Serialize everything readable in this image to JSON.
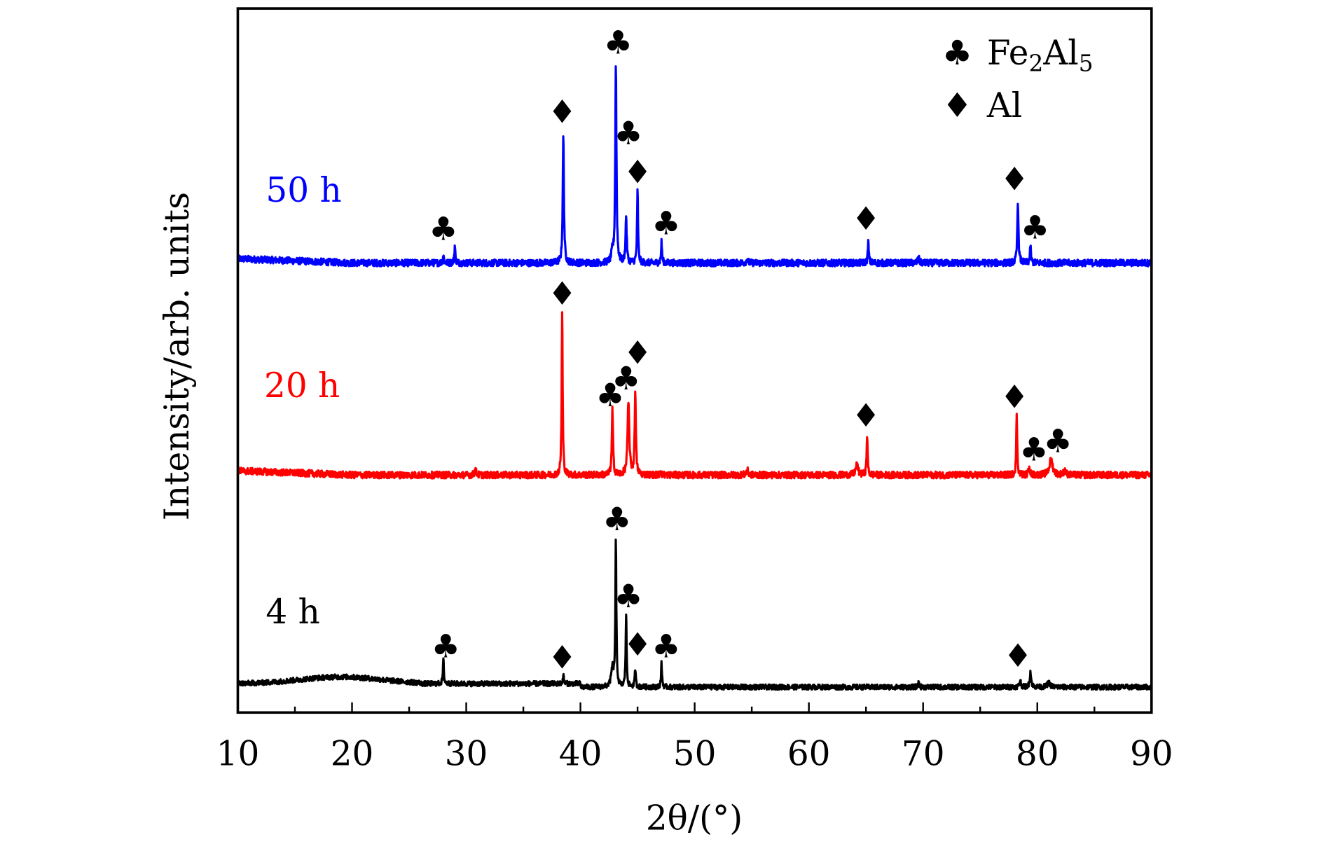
{
  "chart_data": {
    "type": "line",
    "title": "",
    "xlabel": "2θ/(°)",
    "ylabel": "Intensity/arb. units",
    "xlim": [
      10,
      90
    ],
    "ylim": [
      -30,
      800
    ],
    "xticks": [
      "10",
      "20",
      "30",
      "40",
      "50",
      "60",
      "70",
      "80",
      "90"
    ],
    "grid": false,
    "legend": {
      "placement": "top-right",
      "entries": [
        {
          "symbol": "♣",
          "label_main": "Fe",
          "sub1": "2",
          "mid": "Al",
          "sub2": "5",
          "name": "Fe2Al5"
        },
        {
          "symbol": "♦",
          "label_main": "Al",
          "name": "Al"
        }
      ]
    },
    "series": [
      {
        "name": "50 h",
        "label": "50 h",
        "color": "#0000ff",
        "offset": 500,
        "noise": 4,
        "peaks": [
          [
            28.0,
            10,
            0.1
          ],
          [
            29.0,
            20,
            0.1
          ],
          [
            38.5,
            150,
            0.12
          ],
          [
            43.1,
            235,
            0.12
          ],
          [
            44.0,
            55,
            0.12
          ],
          [
            45.0,
            85,
            0.1
          ],
          [
            47.1,
            25,
            0.1
          ],
          [
            65.2,
            25,
            0.1
          ],
          [
            78.3,
            72,
            0.12
          ],
          [
            79.4,
            20,
            0.1
          ],
          [
            69.6,
            6,
            0.15
          ],
          [
            54.6,
            5,
            0.15
          ],
          [
            42.8,
            12,
            0.2
          ]
        ],
        "markers": [
          [
            28.0,
            540,
            "club"
          ],
          [
            38.4,
            678,
            "diamond"
          ],
          [
            43.3,
            760,
            "club"
          ],
          [
            44.2,
            653,
            "club"
          ],
          [
            45.0,
            607,
            "diamond"
          ],
          [
            47.5,
            547,
            "club"
          ],
          [
            65.0,
            552,
            "diamond"
          ],
          [
            78.0,
            599,
            "diamond"
          ],
          [
            79.8,
            542,
            "club"
          ]
        ]
      },
      {
        "name": "20 h",
        "label": "20 h",
        "color": "#ff0000",
        "offset": 250,
        "noise": 4,
        "peaks": [
          [
            38.4,
            192,
            0.1
          ],
          [
            42.8,
            78,
            0.12
          ],
          [
            44.2,
            85,
            0.18
          ],
          [
            44.8,
            100,
            0.12
          ],
          [
            65.1,
            48,
            0.1
          ],
          [
            78.2,
            72,
            0.1
          ],
          [
            79.3,
            12,
            0.12
          ],
          [
            81.2,
            18,
            0.35
          ],
          [
            64.2,
            12,
            0.25
          ],
          [
            30.8,
            7,
            0.15
          ],
          [
            54.6,
            6,
            0.2
          ],
          [
            47.0,
            6,
            0.1
          ],
          [
            82.4,
            6,
            0.2
          ]
        ],
        "markers": [
          [
            38.4,
            464,
            "diamond"
          ],
          [
            42.6,
            344,
            "club"
          ],
          [
            44.0,
            364,
            "club"
          ],
          [
            45.0,
            394,
            "diamond"
          ],
          [
            65.0,
            320,
            "diamond"
          ],
          [
            78.0,
            342,
            "diamond"
          ],
          [
            79.7,
            280,
            "club"
          ],
          [
            81.8,
            290,
            "club"
          ]
        ]
      },
      {
        "name": "4 h",
        "label": "4 h",
        "color": "#000000",
        "offset": 0,
        "noise": 3,
        "peaks": [
          [
            28.0,
            28,
            0.1
          ],
          [
            38.5,
            10,
            0.1
          ],
          [
            42.8,
            22,
            0.25
          ],
          [
            43.1,
            170,
            0.1
          ],
          [
            44.0,
            85,
            0.1
          ],
          [
            44.8,
            22,
            0.1
          ],
          [
            47.1,
            28,
            0.1
          ],
          [
            78.5,
            8,
            0.15
          ],
          [
            79.4,
            18,
            0.15
          ],
          [
            69.6,
            6,
            0.1
          ],
          [
            81.0,
            5,
            0.3
          ]
        ],
        "markers": [
          [
            28.2,
            48,
            "club"
          ],
          [
            38.4,
            35,
            "diamond"
          ],
          [
            43.2,
            198,
            "club"
          ],
          [
            44.2,
            107,
            "club"
          ],
          [
            45.0,
            50,
            "diamond"
          ],
          [
            47.5,
            48,
            "club"
          ],
          [
            78.3,
            37,
            "diamond"
          ]
        ]
      }
    ]
  }
}
